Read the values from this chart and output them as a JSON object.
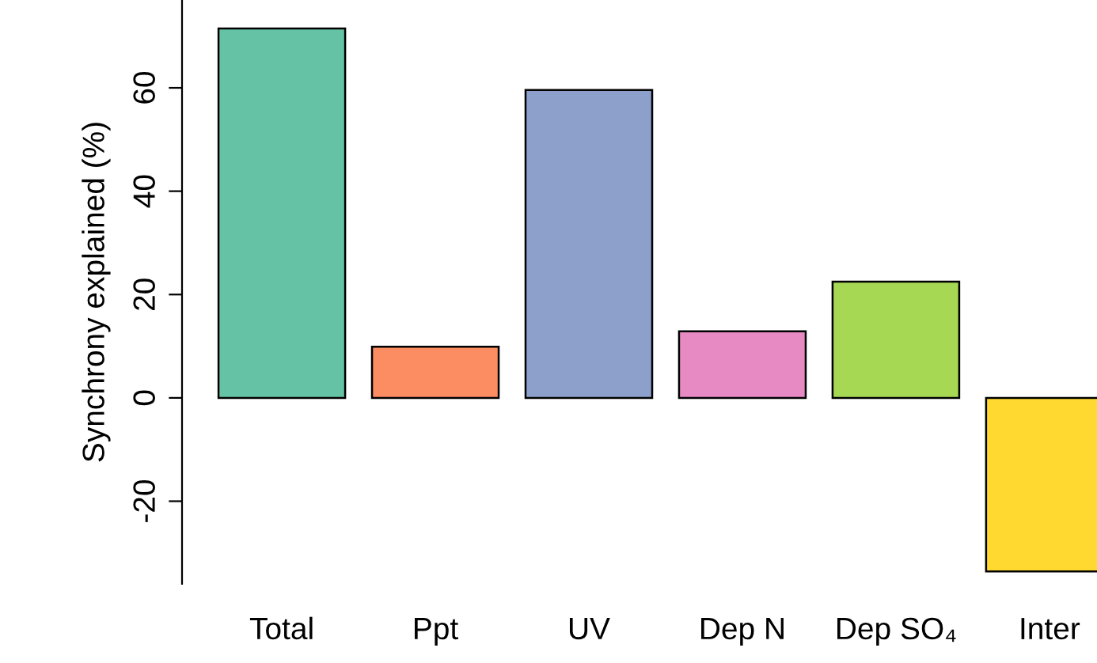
{
  "chart_data": {
    "type": "bar",
    "ylabel": "Synchrony explained (%)",
    "categories": [
      "Total",
      "Ppt",
      "UV",
      "Dep N",
      "Dep SO₄",
      "Inter"
    ],
    "values": [
      71.5,
      9.9,
      59.6,
      12.9,
      22.5,
      -33.6
    ],
    "colors": [
      "#66c2a5",
      "#fc8d62",
      "#8da0cb",
      "#e78ac3",
      "#a6d854",
      "#ffd92f"
    ],
    "ylim": [
      -36,
      77
    ],
    "yticks": [
      -20,
      0,
      20,
      40,
      60
    ],
    "grid": false,
    "legend": false
  }
}
